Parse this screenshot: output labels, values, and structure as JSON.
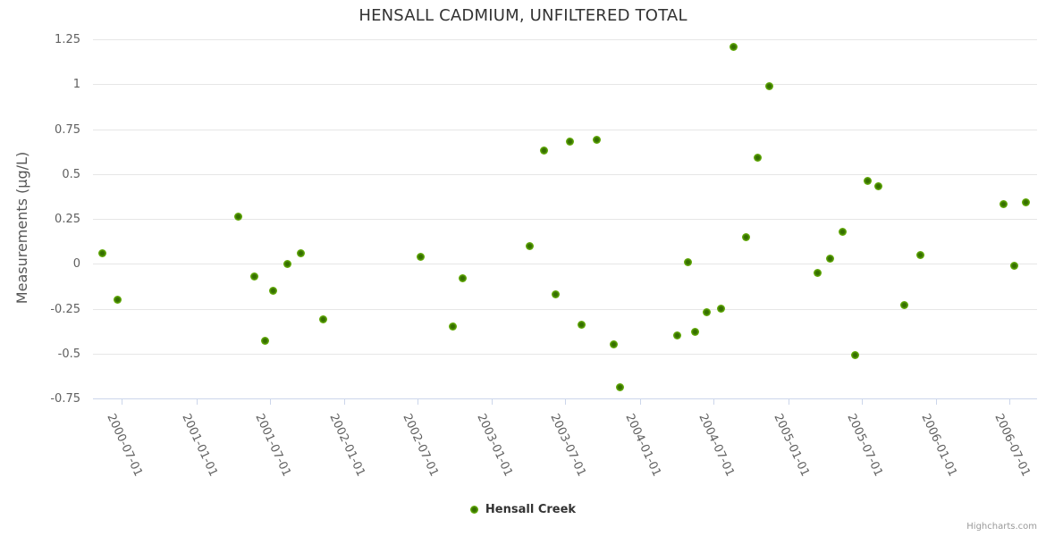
{
  "title": "HENSALL CADMIUM, UNFILTERED TOTAL",
  "credits": "Highcharts.com",
  "colors": {
    "marker_inner": "#356f00",
    "marker_outer": "#8ac53a",
    "series": "#5d9f05",
    "grid": "#e6e6e6",
    "axis": "#ccd6eb",
    "tick_text": "#606060",
    "title_text": "#333333"
  },
  "chart_data": {
    "type": "scatter",
    "title": "HENSALL CADMIUM, UNFILTERED TOTAL",
    "xlabel": "",
    "ylabel": "Measurements (µg/L)",
    "ylim": [
      -0.75,
      1.25
    ],
    "ytick_step": 0.25,
    "grid": true,
    "legend_position": "bottom-center",
    "x_domain": [
      "2000-04-21",
      "2006-09-07"
    ],
    "yticks": [
      {
        "label": "1.25",
        "value": 1.25
      },
      {
        "label": "1",
        "value": 1.0
      },
      {
        "label": "0.75",
        "value": 0.75
      },
      {
        "label": "0.5",
        "value": 0.5
      },
      {
        "label": "0.25",
        "value": 0.25
      },
      {
        "label": "0",
        "value": 0
      },
      {
        "label": "-0.25",
        "value": -0.25
      },
      {
        "label": "-0.5",
        "value": -0.5
      },
      {
        "label": "-0.75",
        "value": -0.75
      }
    ],
    "xticks": [
      "2000-07-01",
      "2001-01-01",
      "2001-07-01",
      "2002-01-01",
      "2002-07-01",
      "2003-01-01",
      "2003-07-01",
      "2004-01-01",
      "2004-07-01",
      "2005-01-01",
      "2005-07-01",
      "2006-01-01",
      "2006-07-01"
    ],
    "series": [
      {
        "name": "Hensall Creek",
        "points": [
          {
            "x": "2000-05-15",
            "y": 0.06
          },
          {
            "x": "2000-06-20",
            "y": -0.2
          },
          {
            "x": "2001-04-15",
            "y": 0.26
          },
          {
            "x": "2001-05-25",
            "y": -0.07
          },
          {
            "x": "2001-06-20",
            "y": -0.43
          },
          {
            "x": "2001-07-10",
            "y": -0.15
          },
          {
            "x": "2001-08-15",
            "y": 0.0
          },
          {
            "x": "2001-09-15",
            "y": 0.06
          },
          {
            "x": "2001-11-10",
            "y": -0.31
          },
          {
            "x": "2002-07-08",
            "y": 0.04
          },
          {
            "x": "2002-09-25",
            "y": -0.35
          },
          {
            "x": "2002-10-20",
            "y": -0.08
          },
          {
            "x": "2003-04-03",
            "y": 0.1
          },
          {
            "x": "2003-05-10",
            "y": 0.63
          },
          {
            "x": "2003-06-07",
            "y": -0.17
          },
          {
            "x": "2003-07-12",
            "y": 0.68
          },
          {
            "x": "2003-08-10",
            "y": -0.34
          },
          {
            "x": "2003-09-17",
            "y": 0.69
          },
          {
            "x": "2003-10-28",
            "y": -0.45
          },
          {
            "x": "2003-11-12",
            "y": -0.69
          },
          {
            "x": "2004-04-01",
            "y": -0.4
          },
          {
            "x": "2004-04-28",
            "y": 0.01
          },
          {
            "x": "2004-05-17",
            "y": -0.38
          },
          {
            "x": "2004-06-14",
            "y": -0.27
          },
          {
            "x": "2004-07-19",
            "y": -0.25
          },
          {
            "x": "2004-08-18",
            "y": 1.21
          },
          {
            "x": "2004-09-18",
            "y": 0.15
          },
          {
            "x": "2004-10-17",
            "y": 0.59
          },
          {
            "x": "2004-11-15",
            "y": 0.99
          },
          {
            "x": "2005-03-15",
            "y": -0.05
          },
          {
            "x": "2005-04-15",
            "y": 0.03
          },
          {
            "x": "2005-05-15",
            "y": 0.18
          },
          {
            "x": "2005-06-15",
            "y": -0.51
          },
          {
            "x": "2005-07-15",
            "y": 0.46
          },
          {
            "x": "2005-08-12",
            "y": 0.43
          },
          {
            "x": "2005-10-15",
            "y": -0.23
          },
          {
            "x": "2005-11-24",
            "y": 0.05
          },
          {
            "x": "2006-06-17",
            "y": 0.33
          },
          {
            "x": "2006-07-12",
            "y": -0.01
          },
          {
            "x": "2006-08-10",
            "y": 0.34
          }
        ]
      }
    ]
  }
}
